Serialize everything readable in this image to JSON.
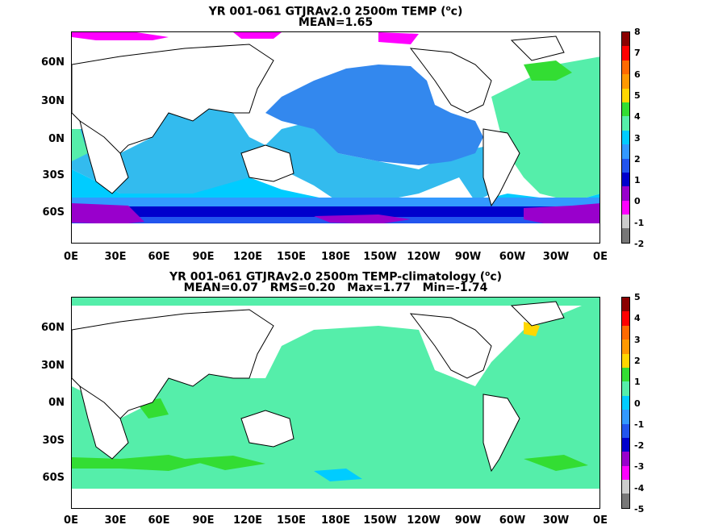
{
  "panels": [
    {
      "title_line1": "YR 001-061 GTJRAv2.0 2500m TEMP (",
      "title_unit": "o",
      "title_unit_end": "c)",
      "title_line2": "MEAN=1.65",
      "lat_labels": [
        "60N",
        "30N",
        "0N",
        "30S",
        "60S"
      ],
      "lon_labels": [
        "0E",
        "30E",
        "60E",
        "90E",
        "120E",
        "150E",
        "180E",
        "150W",
        "120W",
        "90W",
        "60W",
        "30W",
        "0E"
      ],
      "colorbar_labels": [
        "8",
        "7",
        "6",
        "5",
        "4",
        "3",
        "2",
        "1",
        "0",
        "-1",
        "-2"
      ],
      "colorbar_colors": [
        "#8b0000",
        "#ff0000",
        "#ff6a00",
        "#ff9900",
        "#ffd700",
        "#33dd33",
        "#55eeaa",
        "#00ccff",
        "#3399ff",
        "#2255ee",
        "#0000cc",
        "#9900cc",
        "#ff00ff",
        "#cccccc",
        "#777777"
      ]
    },
    {
      "title_line1": "YR 001-061 GTJRAv2.0 2500m TEMP-climatology (",
      "title_unit": "o",
      "title_unit_end": "c)",
      "title_line2": "MEAN=0.07   RMS=0.20   Max=1.77   Min=-1.74",
      "lat_labels": [
        "60N",
        "30N",
        "0N",
        "30S",
        "60S"
      ],
      "lon_labels": [
        "0E",
        "30E",
        "60E",
        "90E",
        "120E",
        "150E",
        "180E",
        "150W",
        "120W",
        "90W",
        "60W",
        "30W",
        "0E"
      ],
      "colorbar_labels": [
        "5",
        "4",
        "3",
        "2",
        "1",
        "0",
        "-1",
        "-2",
        "-3",
        "-4",
        "-5"
      ],
      "colorbar_colors": [
        "#8b0000",
        "#ff0000",
        "#ff6a00",
        "#ff9900",
        "#ffd700",
        "#33dd33",
        "#55eeaa",
        "#00ccff",
        "#3399ff",
        "#2255ee",
        "#0000cc",
        "#9900cc",
        "#ff00ff",
        "#cccccc",
        "#777777"
      ]
    }
  ]
}
